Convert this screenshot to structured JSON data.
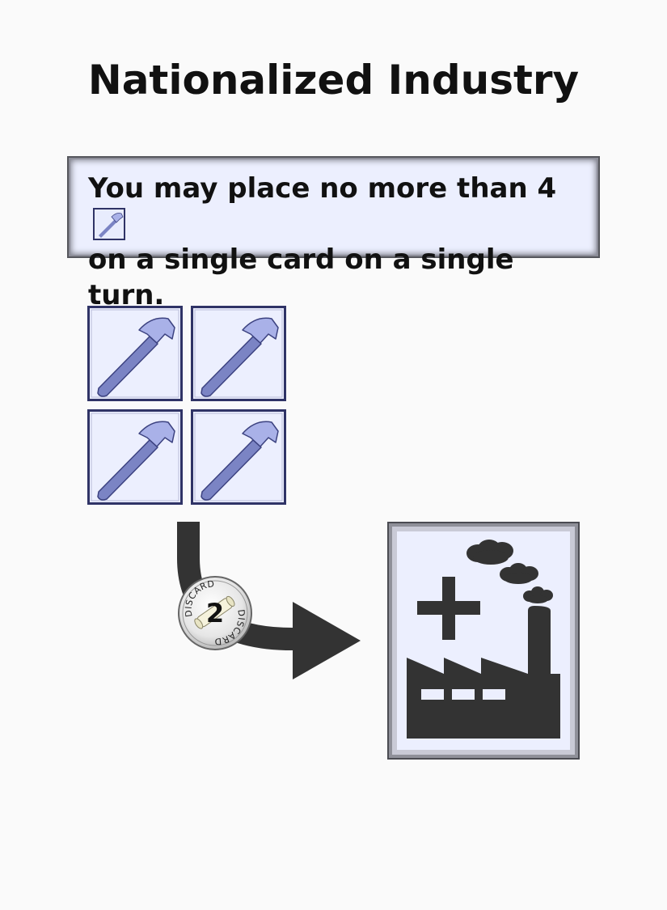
{
  "card": {
    "title": "Nationalized Industry",
    "rule_line_1": "You may place no more than 4",
    "rule_line_2": "on a single card on a single turn."
  },
  "discard_badge": {
    "label_top": "DISCARD",
    "label_bottom": "DISCARD",
    "amount": "2"
  },
  "icons": {
    "inline": "hammer-icon",
    "tiles": [
      "hammer-icon",
      "hammer-icon",
      "hammer-icon",
      "hammer-icon"
    ],
    "arrow": "curved-arrow-icon",
    "target": "factory-plus-icon"
  },
  "colors": {
    "background": "#fafafa",
    "box_fill": "#eceffe",
    "box_border": "#55565c",
    "tile_border": "#2f3366",
    "hammer": "#7b84c4",
    "hammer_head": "#a9b1e8",
    "dark_glyph": "#333333"
  }
}
